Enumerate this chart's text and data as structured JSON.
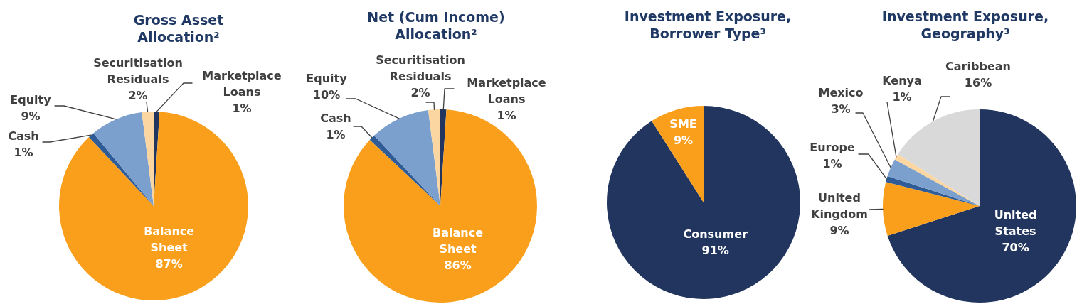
{
  "chart_data": [
    {
      "type": "pie",
      "title": "Gross Asset Allocation²",
      "categories": [
        "Marketplace Loans",
        "Balance Sheet",
        "Cash",
        "Equity",
        "Securitisation Residuals"
      ],
      "values": [
        1,
        87,
        1,
        9,
        2
      ],
      "colors": [
        "#22355e",
        "#f99f1b",
        "#2f5b96",
        "#7ba0cd",
        "#fcd6a0"
      ],
      "value_labels": [
        "1%",
        "87%",
        "1%",
        "9%",
        "2%"
      ]
    },
    {
      "type": "pie",
      "title": "Net (Cum Income) Allocation²",
      "categories": [
        "Marketplace Loans",
        "Balance Sheet",
        "Cash",
        "Equity",
        "Securitisation Residuals"
      ],
      "values": [
        1,
        86,
        1,
        10,
        2
      ],
      "colors": [
        "#22355e",
        "#f99f1b",
        "#2f5b96",
        "#7ba0cd",
        "#fcd6a0"
      ],
      "value_labels": [
        "1%",
        "86%",
        "1%",
        "10%",
        "2%"
      ]
    },
    {
      "type": "pie",
      "title": "Investment Exposure, Borrower Type³",
      "categories": [
        "Consumer",
        "SME"
      ],
      "values": [
        91,
        9
      ],
      "colors": [
        "#22355e",
        "#f99f1b"
      ],
      "value_labels": [
        "91%",
        "9%"
      ]
    },
    {
      "type": "pie",
      "title": "Investment Exposure, Geography³",
      "categories": [
        "United States",
        "United Kingdom",
        "Europe",
        "Mexico",
        "Kenya",
        "Caribbean"
      ],
      "values": [
        70,
        9,
        1,
        3,
        1,
        16
      ],
      "colors": [
        "#22355e",
        "#f99f1b",
        "#2f5b96",
        "#7ba0cd",
        "#fcd6a0",
        "#d9d9d9"
      ],
      "value_labels": [
        "70%",
        "9%",
        "1%",
        "3%",
        "1%",
        "16%"
      ]
    }
  ]
}
